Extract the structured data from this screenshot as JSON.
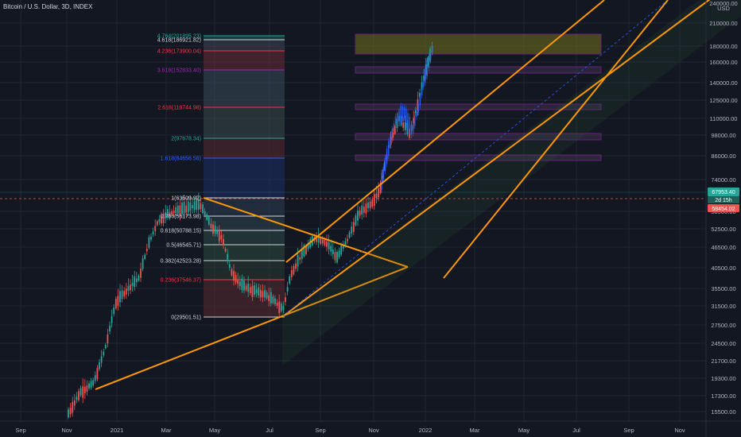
{
  "header": {
    "title": "Bitcoin / U.S. Dollar, 3D, INDEX"
  },
  "chart_data": {
    "type": "candlestick",
    "scale": "log",
    "y_axis": {
      "unit_label": "USD",
      "ticks": [
        "240000.00",
        "210000.00",
        "180000.00",
        "160000.00",
        "140000.00",
        "125000.00",
        "110000.00",
        "98000.00",
        "86000.00",
        "74000.00",
        "58500.00",
        "52500.00",
        "46500.00",
        "40500.00",
        "35500.00",
        "31500.00",
        "27500.00",
        "24500.00",
        "21700.00",
        "19300.00",
        "17300.00",
        "15500.00"
      ]
    },
    "x_axis": {
      "ticks": [
        "Sep",
        "Nov",
        "2021",
        "Mar",
        "May",
        "Jul",
        "Sep",
        "Nov",
        "2022",
        "Mar",
        "May",
        "Jul",
        "Sep",
        "Nov"
      ]
    },
    "price_badges": {
      "current": "67953.40",
      "countdown": "2d 15h",
      "secondary": "58454.02"
    },
    "fib_levels": [
      {
        "label": "4.764(201895.23)",
        "color": "#26a69a"
      },
      {
        "label": "4.618(186921.82)",
        "color": "#d1d4dc"
      },
      {
        "label": "4.236(173900.04)",
        "color": "#f23645"
      },
      {
        "label": "3.618(152833.40)",
        "color": "#9c27b0"
      },
      {
        "label": "2.618(118744.98)",
        "color": "#f23645"
      },
      {
        "label": "2(97678.34)",
        "color": "#26a69a"
      },
      {
        "label": "1.618(84656.56)",
        "color": "#2962ff"
      },
      {
        "label": "1(63509.92)",
        "color": "#d1d4dc"
      },
      {
        "label": "0.786(56173.98)",
        "color": "#d1d4dc"
      },
      {
        "label": "0.618(50788.15)",
        "color": "#d1d4dc"
      },
      {
        "label": "0.5(46545.71)",
        "color": "#d1d4dc"
      },
      {
        "label": "0.382(42523.28)",
        "color": "#d1d4dc"
      },
      {
        "label": "0.236(37546.37)",
        "color": "#f23645"
      },
      {
        "label": "0(29501.51)",
        "color": "#d1d4dc"
      }
    ],
    "colors": {
      "background": "#131722",
      "up": "#26a69a",
      "down": "#ef5350",
      "projection": "#2962ff",
      "trendline": "#ff9800",
      "zone_border": "#9c27b0",
      "badge_current": "#26a69a",
      "badge_secondary": "#ef5350"
    }
  }
}
